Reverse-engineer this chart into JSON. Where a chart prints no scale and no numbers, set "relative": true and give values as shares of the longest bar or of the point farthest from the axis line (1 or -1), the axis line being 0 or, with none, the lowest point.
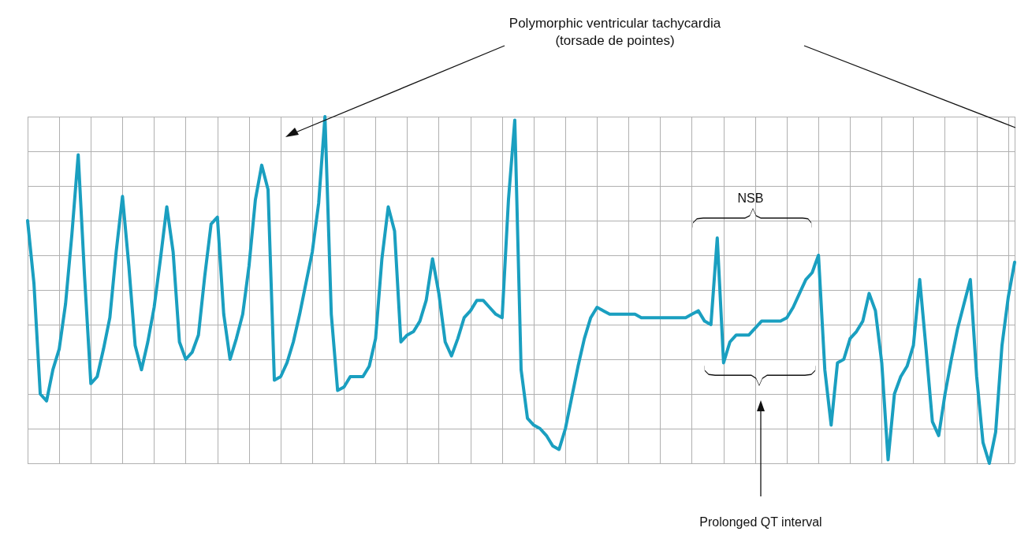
{
  "chart_data": {
    "type": "line",
    "relative": true,
    "grid": true,
    "color": "#1a9fc0",
    "categories": [
      null,
      null,
      null,
      null,
      null,
      null,
      null,
      null,
      null,
      null,
      null,
      null,
      null,
      null,
      null,
      null,
      null,
      null,
      null,
      null,
      null,
      null,
      null,
      null,
      null,
      null,
      null,
      null,
      null,
      null,
      null,
      null,
      null,
      null,
      null,
      null,
      null,
      null,
      null,
      null,
      null,
      null,
      null,
      null,
      null,
      null,
      null,
      null,
      null,
      null,
      null,
      null,
      null,
      null,
      null,
      null,
      null,
      null,
      null,
      null,
      null,
      null,
      null,
      null,
      null,
      null,
      null,
      null,
      null,
      null,
      null,
      null,
      null,
      null,
      null,
      null,
      null,
      null,
      null,
      null,
      null,
      null,
      null,
      null,
      null,
      null,
      null,
      null,
      null,
      null,
      null,
      null,
      null,
      null,
      null,
      null,
      null,
      null,
      null,
      null,
      null,
      null,
      null,
      null,
      null,
      null,
      null,
      null,
      null,
      null,
      null,
      null,
      null,
      null,
      null,
      null,
      null,
      null,
      null,
      null,
      null,
      null,
      null,
      null,
      null,
      null,
      null,
      null,
      null,
      null,
      null,
      null,
      null,
      null,
      null,
      null,
      null,
      null,
      null,
      null,
      null,
      null,
      null,
      null,
      null,
      null,
      null,
      null,
      null,
      null,
      null,
      null,
      null,
      null,
      null,
      null,
      null
    ],
    "values": [
      0.7,
      0.52,
      0.2,
      0.18,
      0.27,
      0.33,
      0.46,
      0.66,
      0.89,
      0.54,
      0.23,
      0.25,
      0.33,
      0.42,
      0.61,
      0.77,
      0.57,
      0.34,
      0.27,
      0.35,
      0.45,
      0.59,
      0.74,
      0.61,
      0.35,
      0.3,
      0.32,
      0.37,
      0.54,
      0.69,
      0.71,
      0.43,
      0.3,
      0.36,
      0.43,
      0.57,
      0.76,
      0.86,
      0.79,
      0.24,
      0.25,
      0.29,
      0.35,
      0.43,
      0.52,
      0.61,
      0.75,
      1,
      0.43,
      0.21,
      0.22,
      0.25,
      0.25,
      0.25,
      0.28,
      0.36,
      0.59,
      0.74,
      0.67,
      0.35,
      0.37,
      0.38,
      0.41,
      0.47,
      0.59,
      0.49,
      0.35,
      0.31,
      0.36,
      0.42,
      0.44,
      0.47,
      0.47,
      0.45,
      0.43,
      0.42,
      0.76,
      0.99,
      0.27,
      0.13,
      0.11,
      0.1,
      0.08,
      0.05,
      0.04,
      0.1,
      0.19,
      0.28,
      0.36,
      0.42,
      0.45,
      0.44,
      0.43,
      0.43,
      0.43,
      0.43,
      0.43,
      0.42,
      0.42,
      0.42,
      0.42,
      0.42,
      0.42,
      0.42,
      0.42,
      0.43,
      0.44,
      0.41,
      0.4,
      0.65,
      0.29,
      0.35,
      0.37,
      0.37,
      0.37,
      0.39,
      0.41,
      0.41,
      0.41,
      0.41,
      0.42,
      0.45,
      0.49,
      0.53,
      0.55,
      0.6,
      0.27,
      0.11,
      0.29,
      0.3,
      0.36,
      0.38,
      0.41,
      0.49,
      0.44,
      0.29,
      0.01,
      0.2,
      0.25,
      0.28,
      0.34,
      0.53,
      0.33,
      0.12,
      0.08,
      0.2,
      0.3,
      0.39,
      0.46,
      0.53,
      0.25,
      0.06,
      0,
      0.09,
      0.34,
      0.48,
      0.58
    ],
    "annotations": [
      "Polymorphic ventricular tachycardia\n(torsade de pointes)",
      "NSB",
      "Prolonged QT interval"
    ]
  }
}
